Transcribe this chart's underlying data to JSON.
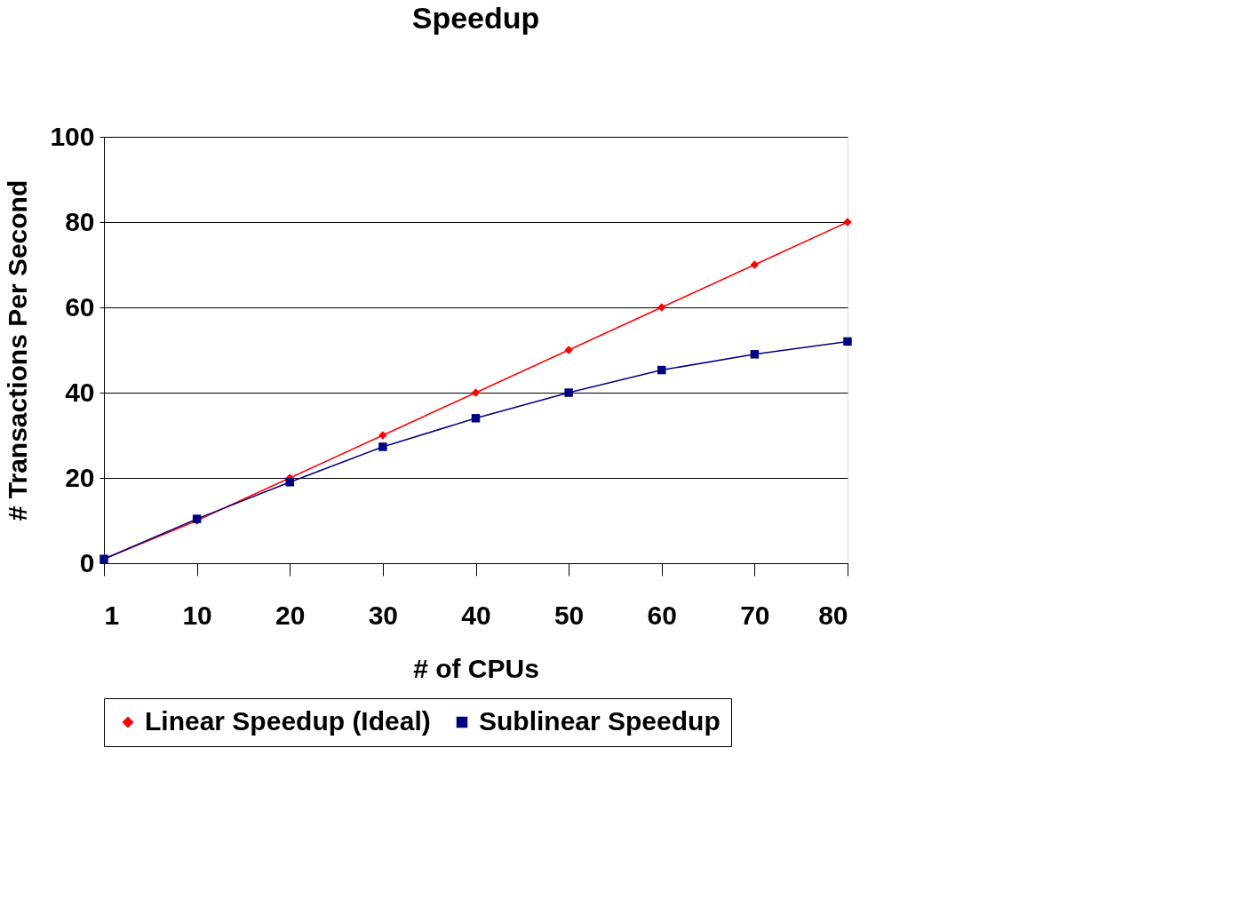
{
  "chart_data": {
    "type": "line",
    "title": "Speedup",
    "xlabel": "# of CPUs",
    "ylabel": "# Transactions Per Second",
    "categories": [
      "1",
      "10",
      "20",
      "30",
      "40",
      "50",
      "60",
      "70",
      "80"
    ],
    "series": [
      {
        "name": "Linear Speedup (Ideal)",
        "color": "#ff0000",
        "marker": "diamond",
        "values": [
          1,
          10,
          20,
          30,
          40,
          50,
          60,
          70,
          80
        ]
      },
      {
        "name": "Sublinear Speedup",
        "color": "#000080",
        "marker": "square",
        "values": [
          1,
          10.4,
          19,
          27.3,
          34,
          40,
          45.3,
          49,
          52
        ]
      }
    ],
    "ylim": [
      0,
      100
    ],
    "yticks": [
      0,
      20,
      40,
      60,
      80,
      100
    ],
    "grid": "y",
    "legend": "bottom",
    "line_style": "solid"
  }
}
